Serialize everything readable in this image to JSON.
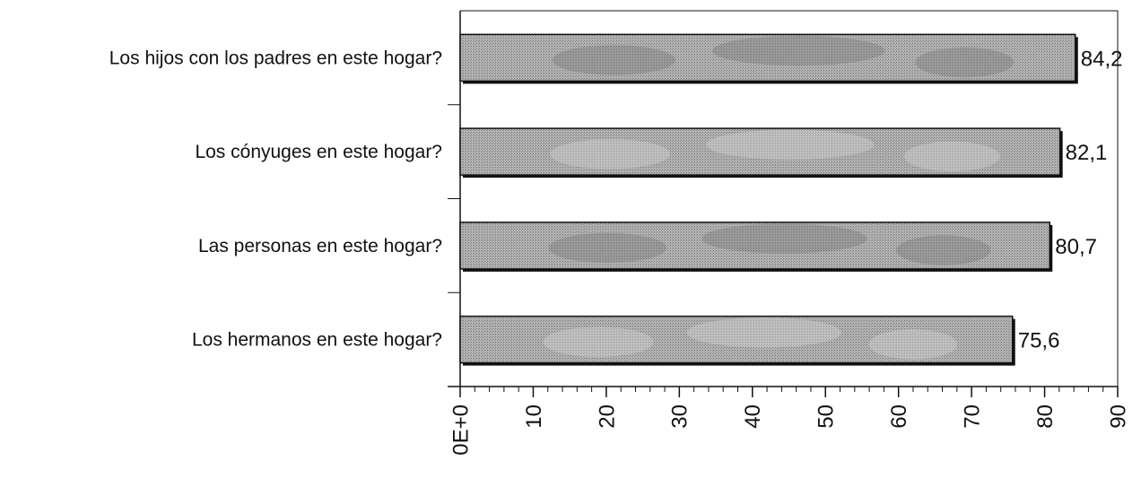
{
  "chart_data": {
    "type": "bar",
    "orientation": "horizontal",
    "categories": [
      "Los hijos con los padres en este hogar?",
      "Los cónyuges en este hogar?",
      "Las personas en este hogar?",
      "Los hermanos en este hogar?"
    ],
    "values": [
      84.2,
      82.1,
      80.7,
      75.6
    ],
    "value_labels": [
      "84,2",
      "82,1",
      "80,7",
      "75,6"
    ],
    "xlim": [
      0,
      90
    ],
    "x_ticks": [
      0,
      10,
      20,
      30,
      40,
      50,
      60,
      70,
      80,
      90
    ],
    "x_tick_labels": [
      "0E+0",
      "10",
      "20",
      "30",
      "40",
      "50",
      "60",
      "70",
      "80",
      "90"
    ],
    "grid": false,
    "legend": "none",
    "colors": {
      "bar_fill": "#a8a8a8",
      "bar_dark": "#7c7c7c",
      "bar_light": "#cfcfcf",
      "axis": "#111111"
    }
  }
}
